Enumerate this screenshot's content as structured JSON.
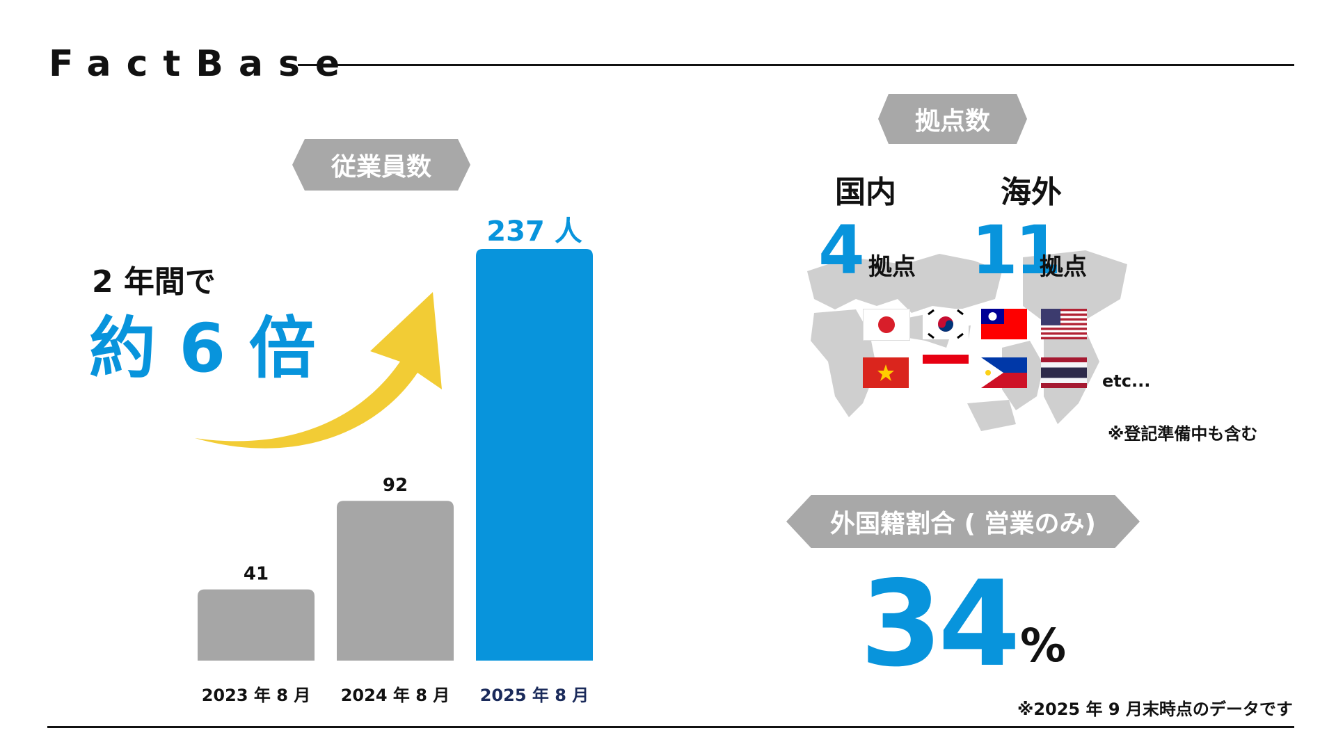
{
  "brand": "FactBase",
  "employees": {
    "tag": "従業員数",
    "headline_line1": "2 年間で",
    "headline_line2": "約 6 倍",
    "unit": "人"
  },
  "chart_data": {
    "type": "bar",
    "categories": [
      "2023 年 8 月",
      "2024 年 8 月",
      "2025 年 8 月"
    ],
    "values": [
      41,
      92,
      237
    ],
    "value_labels": [
      "41",
      "92",
      "237"
    ],
    "colors": [
      "#a6a6a6",
      "#a6a6a6",
      "#0894dc"
    ],
    "title": "従業員数",
    "xlabel": "",
    "ylabel": "",
    "ylim": [
      0,
      237
    ],
    "grid": false
  },
  "bases": {
    "tag": "拠点数",
    "domestic_label": "国内",
    "domestic_count": "4",
    "overseas_label": "海外",
    "overseas_count": "11",
    "unit": "拠点",
    "etc": "etc...",
    "note": "※登記準備中も含む",
    "flags": [
      "japan-flag",
      "south-korea-flag",
      "taiwan-flag",
      "usa-flag",
      "vietnam-flag",
      "indonesia-flag",
      "philippines-flag",
      "thailand-flag"
    ]
  },
  "foreign_ratio": {
    "tag": "外国籍割合 ( 営業のみ)",
    "value": "34",
    "unit": "%"
  },
  "footnote": "※2025 年 9 月末時点のデータです",
  "colors": {
    "accent_blue": "#0894dc",
    "gray_bar": "#a6a6a6",
    "arrow_yellow": "#f2cc35",
    "tag_gray": "#a8a8a8"
  }
}
